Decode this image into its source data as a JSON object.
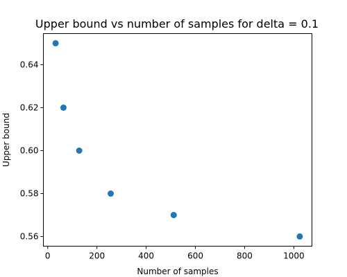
{
  "chart_data": {
    "type": "scatter",
    "title": "Upper bound vs number of samples for delta = 0.1",
    "xlabel": "Number of samples",
    "ylabel": "Upper bound",
    "x": [
      32,
      64,
      128,
      256,
      512,
      1024
    ],
    "y": [
      0.65,
      0.62,
      0.6,
      0.58,
      0.57,
      0.56
    ],
    "xlim": [
      -17.6,
      1073.6
    ],
    "ylim": [
      0.5555,
      0.6545
    ],
    "x_ticks": [
      0,
      200,
      400,
      600,
      800,
      1000
    ],
    "x_tick_labels": [
      "0",
      "200",
      "400",
      "600",
      "800",
      "1000"
    ],
    "y_ticks": [
      0.56,
      0.58,
      0.6,
      0.62,
      0.64
    ],
    "y_tick_labels": [
      "0.56",
      "0.58",
      "0.60",
      "0.62",
      "0.64"
    ],
    "grid": false,
    "marker_color": "#1f77b4"
  }
}
